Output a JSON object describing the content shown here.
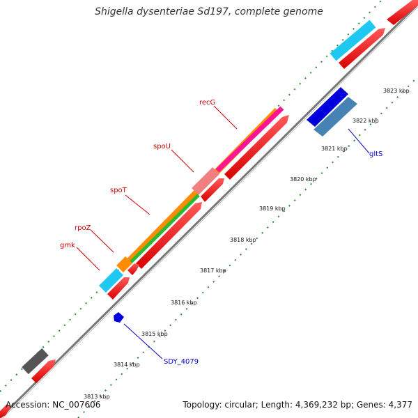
{
  "title": "Shigella dysenteriae Sd197, complete genome",
  "accession": "Accession: NC_007606",
  "topology": "Topology: circular; Length: 4,369,232 bp; Genes: 4,377",
  "ticks": [
    "3813 kbp",
    "3814 kbp",
    "3815 kbp",
    "3816 kbp",
    "3817 kbp",
    "3818 kbp",
    "3819 kbp",
    "3820 kbp",
    "3821 kbp",
    "3822 kbp",
    "3823 kbp"
  ],
  "genes": {
    "recG": "recG",
    "spoU": "spoU",
    "spoT": "spoT",
    "rpoZ": "rpoZ",
    "gmk": "gmk",
    "gltS": "gltS",
    "SDY_4079": "SDY_4079"
  },
  "colors": {
    "cds": "#ff0000",
    "cog_cyan": "#1ec8f0",
    "cog_orange": "#ff8c00",
    "cog_green": "#2db82d",
    "cog_magenta": "#ff1493",
    "cog_pink": "#f08080",
    "cog_gray": "#555555",
    "reverse_blue": "#0000dd",
    "reverse_steel": "#4682b4",
    "backbone": "#888888",
    "tick_green": "#228b22"
  }
}
